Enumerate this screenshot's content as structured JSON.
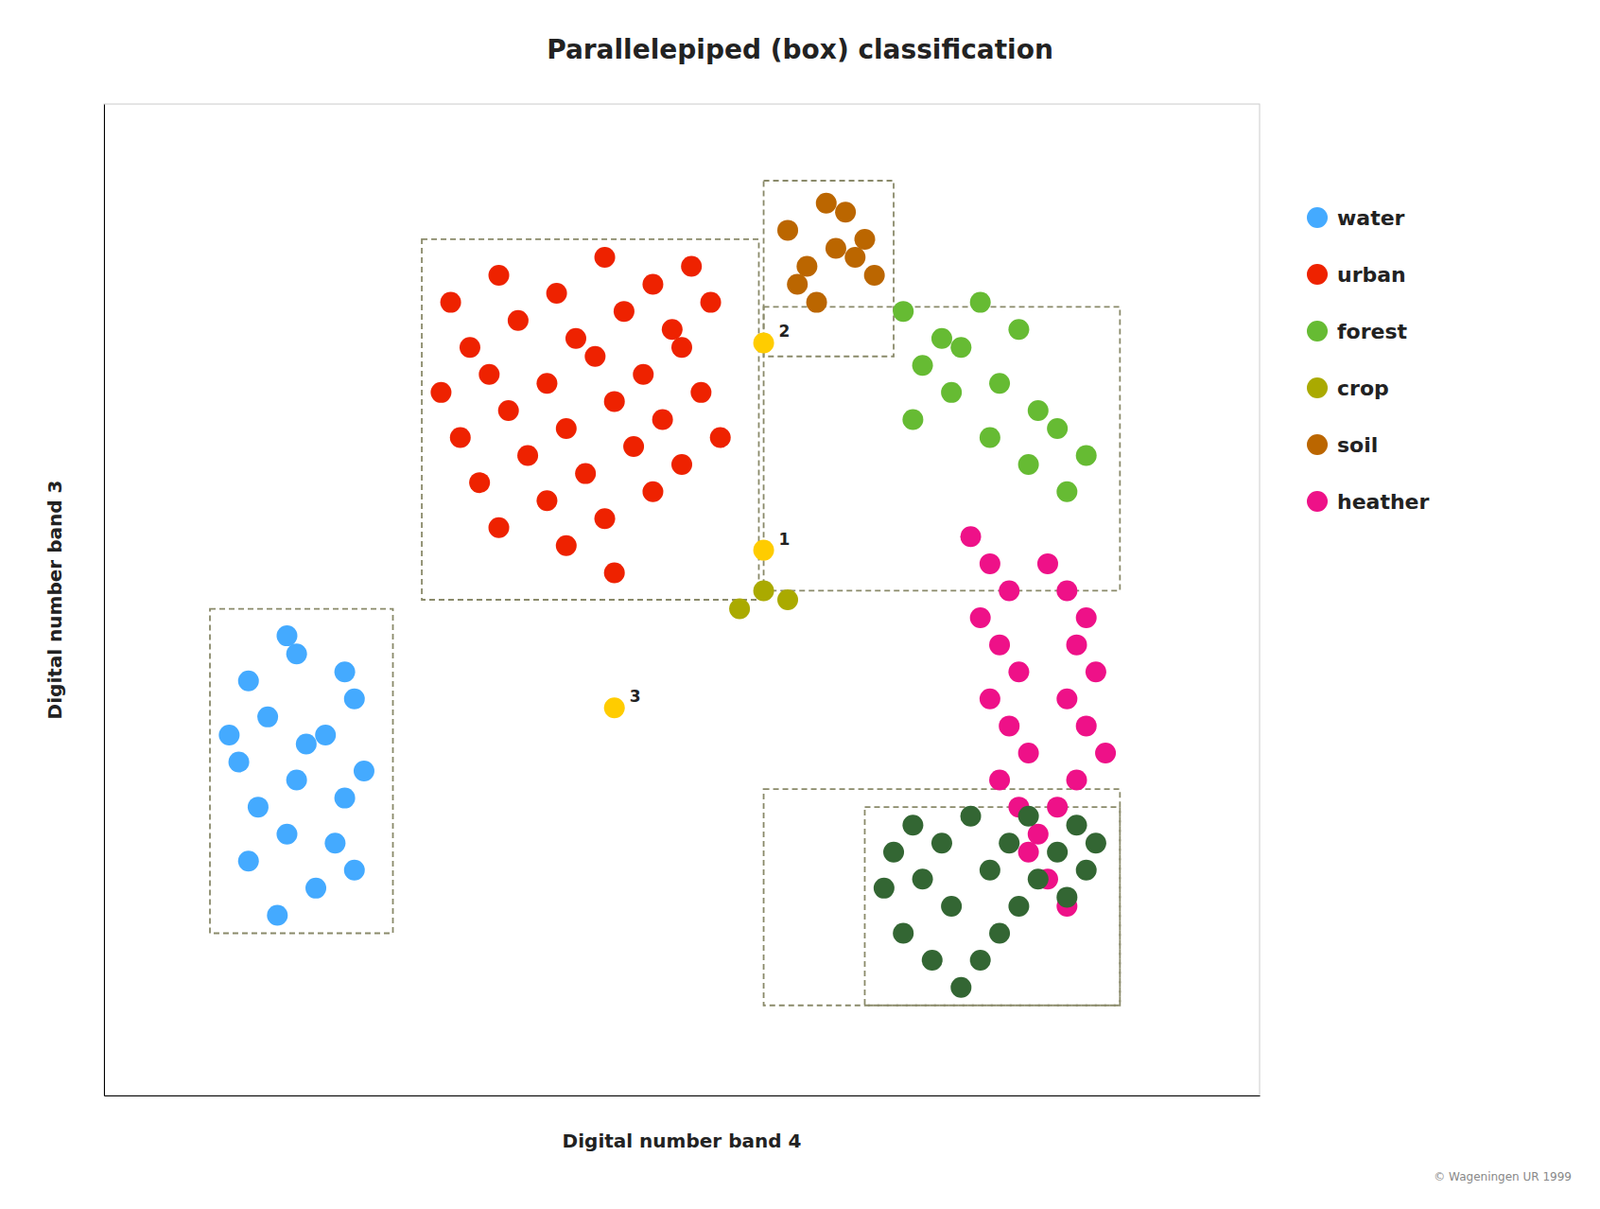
{
  "chart_data": {
    "type": "scatter",
    "title": "Parallelepiped (box)  classification",
    "xlabel": "Digital number band 4",
    "ylabel": "Digital number band 3",
    "xlim": [
      0,
      12
    ],
    "ylim": [
      0,
      11
    ],
    "tick_labels": false,
    "grid": false,
    "legend": "right",
    "series": [
      {
        "name": "water",
        "color": "#44AAFF",
        "x": [
          1.8,
          2.2,
          1.5,
          2.6,
          1.9,
          2.4,
          1.6,
          2.0,
          2.5,
          1.4,
          2.1,
          2.7,
          1.7,
          2.3,
          1.5,
          2.0,
          2.5,
          1.9,
          2.6,
          1.3
        ],
        "values": [
          2.0,
          2.3,
          2.6,
          2.5,
          2.9,
          2.8,
          3.2,
          3.5,
          3.3,
          3.7,
          3.9,
          3.6,
          4.2,
          4.0,
          4.6,
          4.9,
          4.7,
          5.1,
          4.4,
          4.0
        ]
      },
      {
        "name": "urban",
        "color": "#EE2200",
        "x": [
          3.6,
          4.1,
          4.7,
          5.2,
          5.7,
          6.1,
          3.8,
          4.3,
          4.9,
          5.4,
          5.9,
          6.3,
          3.5,
          4.0,
          4.6,
          5.1,
          5.6,
          6.0,
          3.7,
          4.2,
          4.8,
          5.3,
          5.8,
          6.2,
          3.9,
          4.4,
          5.0,
          5.5,
          6.0,
          6.4,
          4.1,
          4.6,
          5.2,
          5.7,
          4.8,
          5.3
        ],
        "values": [
          8.8,
          9.1,
          8.9,
          9.3,
          9.0,
          9.2,
          8.3,
          8.6,
          8.4,
          8.7,
          8.5,
          8.8,
          7.8,
          8.0,
          7.9,
          8.2,
          8.0,
          8.3,
          7.3,
          7.6,
          7.4,
          7.7,
          7.5,
          7.8,
          6.8,
          7.1,
          6.9,
          7.2,
          7.0,
          7.3,
          6.3,
          6.6,
          6.4,
          6.7,
          6.1,
          5.8
        ]
      },
      {
        "name": "forest",
        "color": "#66BB33",
        "x": [
          8.3,
          8.7,
          9.1,
          9.5,
          8.5,
          8.9,
          9.3,
          9.7,
          8.4,
          8.8,
          9.2,
          9.6,
          9.9,
          10.2,
          10.0
        ],
        "values": [
          8.7,
          8.4,
          8.8,
          8.5,
          8.1,
          8.3,
          7.9,
          7.6,
          7.5,
          7.8,
          7.3,
          7.0,
          7.4,
          7.1,
          6.7
        ]
      },
      {
        "name": "crop",
        "color": "#AAAA00",
        "x": [
          6.85,
          6.6,
          7.1
        ],
        "values": [
          5.6,
          5.4,
          5.5
        ]
      },
      {
        "name": "soil",
        "color": "#BB6600",
        "x": [
          7.1,
          7.5,
          7.9,
          7.3,
          7.7,
          7.2,
          7.6,
          8.0,
          7.4,
          7.8
        ],
        "values": [
          9.6,
          9.9,
          9.5,
          9.2,
          9.8,
          9.0,
          9.4,
          9.1,
          8.8,
          9.3
        ]
      },
      {
        "name": "heather",
        "color": "#EE1188",
        "x": [
          9.0,
          9.2,
          9.4,
          9.1,
          9.3,
          9.5,
          9.2,
          9.4,
          9.6,
          9.3,
          9.5,
          9.7,
          9.8,
          10.0,
          10.2,
          10.1,
          10.3,
          10.0,
          10.2,
          10.4,
          10.1,
          9.9,
          9.6,
          9.8,
          10.0
        ],
        "values": [
          6.2,
          5.9,
          5.6,
          5.3,
          5.0,
          4.7,
          4.4,
          4.1,
          3.8,
          3.5,
          3.2,
          2.9,
          5.9,
          5.6,
          5.3,
          5.0,
          4.7,
          4.4,
          4.1,
          3.8,
          3.5,
          3.2,
          2.7,
          2.4,
          2.1
        ]
      },
      {
        "color": "#336633",
        "x": [
          8.2,
          8.5,
          8.8,
          8.3,
          8.6,
          8.9,
          9.1,
          9.3,
          9.5,
          9.7,
          9.9,
          10.1,
          8.7,
          9.0,
          9.2,
          9.4,
          10.0,
          10.2,
          8.4,
          9.6,
          10.3,
          8.1
        ],
        "values": [
          2.7,
          2.4,
          2.1,
          1.8,
          1.5,
          1.2,
          1.5,
          1.8,
          2.1,
          2.4,
          2.7,
          3.0,
          2.8,
          3.1,
          2.5,
          2.8,
          2.2,
          2.5,
          3.0,
          3.1,
          2.8,
          2.3
        ]
      },
      {
        "color": "#FFCC00",
        "x": [
          6.85,
          6.85,
          5.3
        ],
        "values": [
          6.05,
          8.35,
          4.3
        ],
        "labels": [
          "1",
          "2",
          "3"
        ]
      }
    ],
    "boxes": [
      {
        "x": 3.3,
        "y": 5.5,
        "width": 3.5,
        "height": 4.0
      },
      {
        "x": 6.85,
        "y": 8.2,
        "width": 1.35,
        "height": 1.95
      },
      {
        "x": 6.85,
        "y": 5.6,
        "width": 3.7,
        "height": 3.15
      },
      {
        "x": 7.9,
        "y": 1.0,
        "width": 2.65,
        "height": 2.2
      },
      {
        "x": 1.1,
        "y": 1.8,
        "width": 1.9,
        "height": 3.6
      },
      {
        "x": 6.85,
        "y": 1.0,
        "width": 3.7,
        "height": 2.4
      }
    ],
    "caption": "© Wageningen UR 1999"
  }
}
